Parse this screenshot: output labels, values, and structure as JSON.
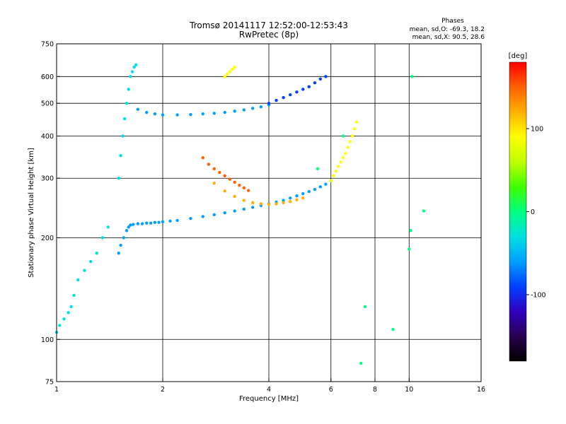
{
  "chart_data": {
    "type": "scatter",
    "title": "Tromsø 20141117 12:52:00-12:53:43",
    "subtitle": "RwPretec (8p)",
    "xlabel": "Frequency [MHz]",
    "ylabel": "Stationary phase Virtual Height [km]",
    "x_scale": "log",
    "y_scale": "log",
    "xlim": [
      1,
      16
    ],
    "ylim": [
      75,
      750
    ],
    "x_ticks": [
      1,
      2,
      4,
      6,
      8,
      10,
      16
    ],
    "y_ticks": [
      75,
      100,
      200,
      300,
      400,
      500,
      600,
      750
    ],
    "grid": true,
    "stats": {
      "header": "Phases",
      "line_o": "mean, sd,O: -69.3, 18.2",
      "line_x": "mean, sd,X:  90.5, 28.6"
    },
    "colorbar": {
      "label": "[deg]",
      "ticks": [
        100,
        0,
        -100
      ],
      "range": [
        -180,
        180
      ],
      "colors": [
        "#000000",
        "#2a0050",
        "#3000c0",
        "#0040ff",
        "#00a0ff",
        "#00e0e0",
        "#00ff80",
        "#40ff00",
        "#c0ff00",
        "#ffff00",
        "#ffb000",
        "#ff6000",
        "#ff0000"
      ]
    },
    "series": [
      {
        "x": [
          1.0,
          1.02,
          1.05,
          1.08,
          1.1,
          1.12,
          1.15,
          1.2,
          1.25,
          1.3,
          1.35,
          1.4
        ],
        "y": [
          105,
          110,
          115,
          120,
          125,
          135,
          150,
          160,
          170,
          180,
          200,
          215
        ],
        "phase": -20
      },
      {
        "x": [
          1.5,
          1.52,
          1.55,
          1.58,
          1.6,
          1.62,
          1.65,
          1.7,
          1.75,
          1.8,
          1.85,
          1.9,
          1.95,
          2.0,
          2.1,
          2.2,
          2.4,
          2.6,
          2.8,
          3.0,
          3.2,
          3.4,
          3.6,
          3.8,
          4.0,
          4.2,
          4.4,
          4.6,
          4.8,
          5.0,
          5.2,
          5.4,
          5.6,
          5.8,
          6.0
        ],
        "y": [
          180,
          190,
          200,
          210,
          215,
          218,
          219,
          220,
          220,
          221,
          221,
          222,
          222,
          223,
          224,
          225,
          228,
          231,
          234,
          237,
          240,
          243,
          246,
          249,
          252,
          255,
          258,
          262,
          266,
          270,
          274,
          278,
          283,
          288,
          295
        ],
        "phase": -60
      },
      {
        "x": [
          2.8,
          3.0,
          3.2,
          3.4,
          3.6,
          3.8,
          4.0,
          4.2,
          4.4,
          4.6,
          4.8,
          5.0
        ],
        "y": [
          290,
          275,
          265,
          258,
          254,
          252,
          251,
          252,
          254,
          256,
          259,
          262
        ],
        "phase": 130
      },
      {
        "x": [
          6.0,
          6.1,
          6.2,
          6.3,
          6.4,
          6.5,
          6.6,
          6.7,
          6.8,
          6.9,
          7.0,
          7.1
        ],
        "y": [
          295,
          305,
          315,
          325,
          335,
          345,
          355,
          370,
          385,
          400,
          420,
          440
        ],
        "phase": 80
      },
      {
        "x": [
          1.5,
          1.52,
          1.54,
          1.56,
          1.58,
          1.6,
          1.62,
          1.64,
          1.66,
          1.68
        ],
        "y": [
          300,
          350,
          400,
          450,
          500,
          550,
          600,
          620,
          640,
          650
        ],
        "phase": -40
      },
      {
        "x": [
          1.7,
          1.8,
          1.9,
          2.0,
          2.2,
          2.4,
          2.6,
          2.8,
          3.0,
          3.2,
          3.4,
          3.6,
          3.8,
          4.0
        ],
        "y": [
          480,
          470,
          465,
          462,
          462,
          463,
          465,
          467,
          470,
          474,
          478,
          483,
          488,
          495
        ],
        "phase": -60
      },
      {
        "x": [
          4.0,
          4.2,
          4.4,
          4.6,
          4.8,
          5.0,
          5.2,
          5.4,
          5.6,
          5.8
        ],
        "y": [
          500,
          510,
          520,
          530,
          540,
          550,
          560,
          575,
          590,
          600
        ],
        "phase": -90
      },
      {
        "x": [
          3.0,
          3.05,
          3.1,
          3.15,
          3.2
        ],
        "y": [
          600,
          610,
          620,
          630,
          640
        ],
        "phase": 90
      },
      {
        "x": [
          2.6,
          2.7,
          2.8,
          2.9,
          3.0,
          3.1,
          3.2,
          3.3,
          3.4,
          3.5
        ],
        "y": [
          345,
          330,
          320,
          312,
          305,
          298,
          292,
          286,
          281,
          276
        ],
        "phase": 150
      },
      {
        "x": [
          10.0,
          10.1,
          10.2,
          11.0,
          5.5,
          6.5,
          7.3,
          9.0,
          7.5
        ],
        "y": [
          185,
          210,
          600,
          240,
          320,
          400,
          85,
          107,
          125
        ],
        "phase": 0
      }
    ]
  }
}
